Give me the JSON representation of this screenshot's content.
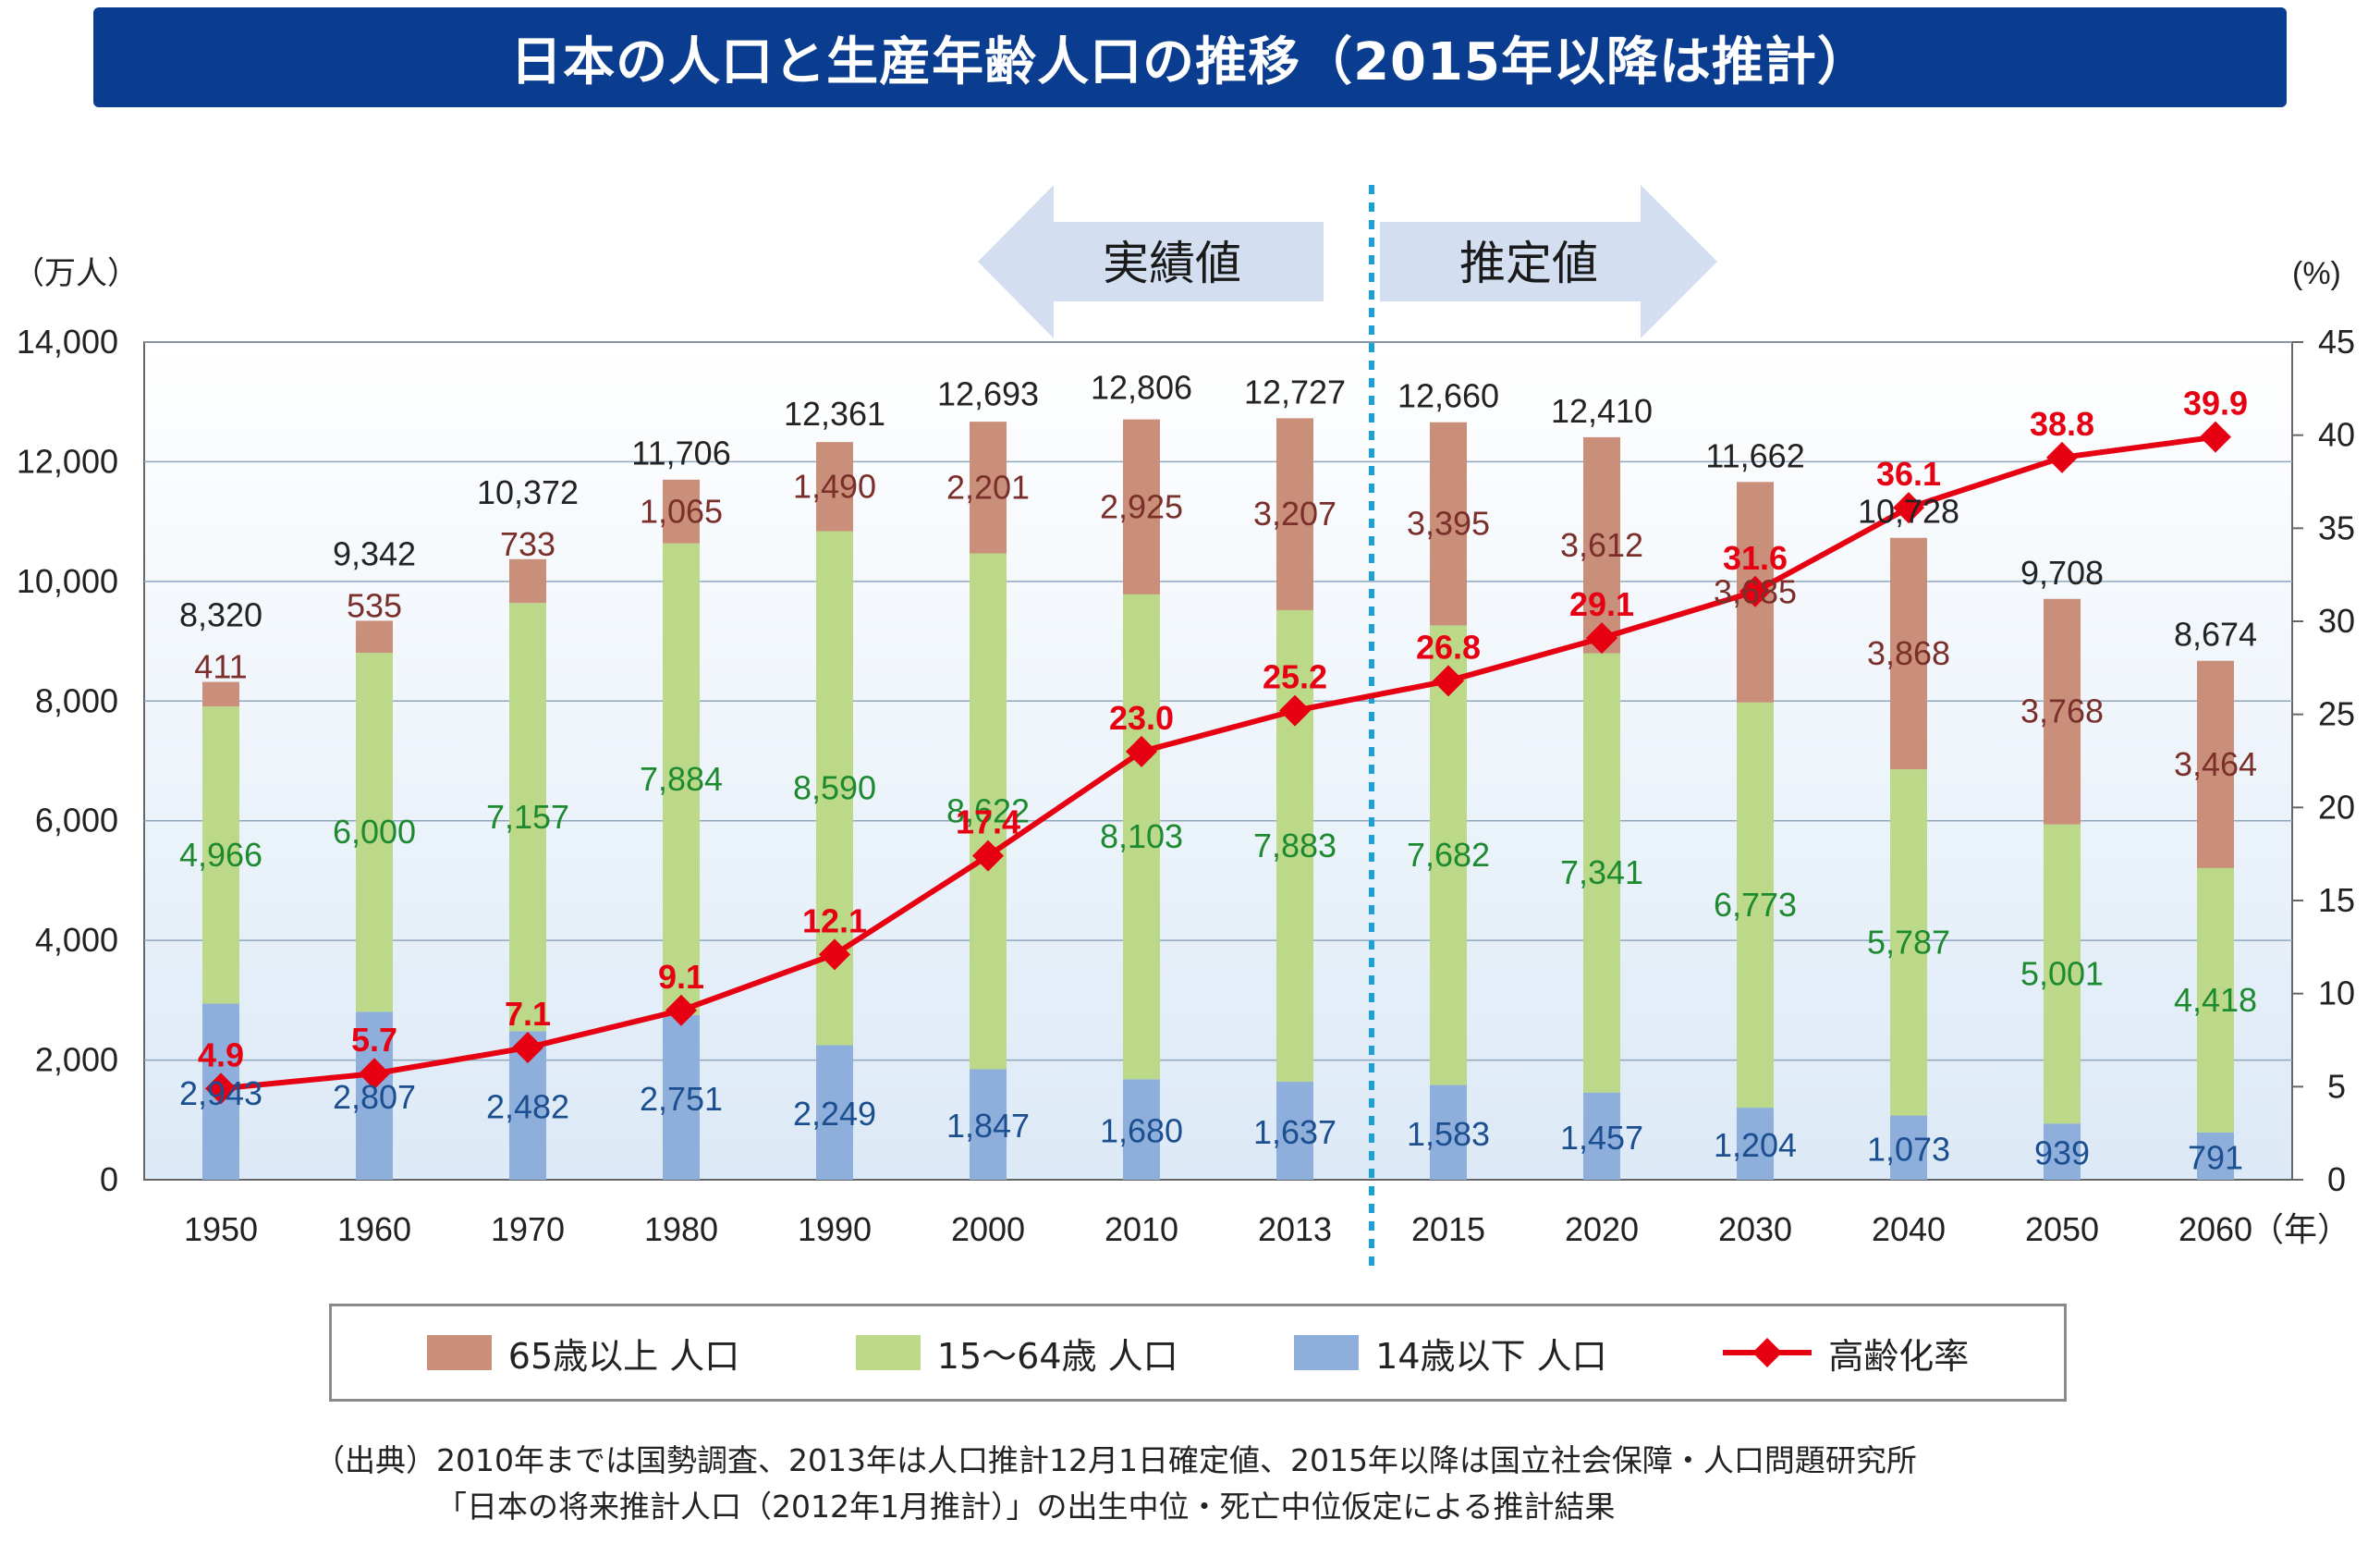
{
  "title": "日本の人口と生産年齢人口の推移（2015年以降は推計）",
  "phase_labels": {
    "actual": "実績値",
    "estimate": "推定値"
  },
  "legend": {
    "elderly": "65歳以上 人口",
    "working": "15～64歳 人口",
    "young": "14歳以下 人口",
    "rate": "高齢化率"
  },
  "source": {
    "line1": "（出典）2010年までは国勢調査、2013年は人口推計12月1日確定値、2015年以降は国立社会保障・人口問題研究所",
    "line2": "「日本の将来推計人口（2012年1月推計）」の出生中位・死亡中位仮定による推計結果"
  },
  "colors": {
    "title_bg": "#0a3d8f",
    "elderly": "#c98f7a",
    "working": "#bcd98a",
    "young": "#8eaedb",
    "rate_line": "#e60012",
    "elderly_text": "#7a2f2a",
    "working_text": "#1e8a30",
    "young_text": "#1c4f8f",
    "divider": "#1ba0d8"
  },
  "chart_data": {
    "type": "bar",
    "stacked": true,
    "y_unit_left": "（万人）",
    "y_unit_right": "(%)",
    "x_unit": "（年）",
    "ylim_left": [
      0,
      14000
    ],
    "ylim_right": [
      0,
      45
    ],
    "y_ticks_left": [
      "0",
      "2,000",
      "4,000",
      "6,000",
      "8,000",
      "10,000",
      "12,000",
      "14,000"
    ],
    "y_ticks_right": [
      "0",
      "5",
      "10",
      "15",
      "20",
      "25",
      "30",
      "35",
      "40",
      "45"
    ],
    "categories": [
      "1950",
      "1960",
      "1970",
      "1980",
      "1990",
      "2000",
      "2010",
      "2013",
      "2015",
      "2020",
      "2030",
      "2040",
      "2050",
      "2060"
    ],
    "estimate_from": "2015",
    "series": [
      {
        "name": "14歳以下 人口",
        "values": [
          2943,
          2807,
          2482,
          2751,
          2249,
          1847,
          1680,
          1637,
          1583,
          1457,
          1204,
          1073,
          939,
          791
        ],
        "labels": [
          "2,943",
          "2,807",
          "2,482",
          "2,751",
          "2,249",
          "1,847",
          "1,680",
          "1,637",
          "1,583",
          "1,457",
          "1,204",
          "1,073",
          "939",
          "791"
        ]
      },
      {
        "name": "15～64歳 人口",
        "values": [
          4966,
          6000,
          7157,
          7884,
          8590,
          8622,
          8103,
          7883,
          7682,
          7341,
          6773,
          5787,
          5001,
          4418
        ],
        "labels": [
          "4,966",
          "6,000",
          "7,157",
          "7,884",
          "8,590",
          "8,622",
          "8,103",
          "7,883",
          "7,682",
          "7,341",
          "6,773",
          "5,787",
          "5,001",
          "4,418"
        ]
      },
      {
        "name": "65歳以上 人口",
        "values": [
          411,
          535,
          733,
          1065,
          1490,
          2201,
          2925,
          3207,
          3395,
          3612,
          3685,
          3868,
          3768,
          3464
        ],
        "labels": [
          "411",
          "535",
          "733",
          "1,065",
          "1,490",
          "2,201",
          "2,925",
          "3,207",
          "3,395",
          "3,612",
          "3,685",
          "3,868",
          "3,768",
          "3,464"
        ]
      }
    ],
    "totals": [
      8320,
      9342,
      10372,
      11706,
      12361,
      12693,
      12806,
      12727,
      12660,
      12410,
      11662,
      10728,
      9708,
      8674
    ],
    "total_labels": [
      "8,320",
      "9,342",
      "10,372",
      "11,706",
      "12,361",
      "12,693",
      "12,806",
      "12,727",
      "12,660",
      "12,410",
      "11,662",
      "10,728",
      "9,708",
      "8,674"
    ],
    "line_series": {
      "name": "高齢化率",
      "axis": "right",
      "values": [
        4.9,
        5.7,
        7.1,
        9.1,
        12.1,
        17.4,
        23.0,
        25.2,
        26.8,
        29.1,
        31.6,
        36.1,
        38.8,
        39.9
      ],
      "labels": [
        "4.9",
        "5.7",
        "7.1",
        "9.1",
        "12.1",
        "17.4",
        "23.0",
        "25.2",
        "26.8",
        "29.1",
        "31.6",
        "36.1",
        "38.8",
        "39.9"
      ]
    },
    "grid": true
  }
}
